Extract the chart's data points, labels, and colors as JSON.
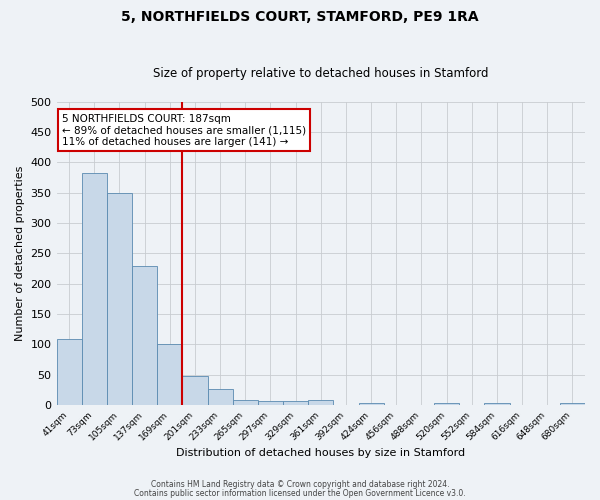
{
  "title": "5, NORTHFIELDS COURT, STAMFORD, PE9 1RA",
  "subtitle": "Size of property relative to detached houses in Stamford",
  "xlabel": "Distribution of detached houses by size in Stamford",
  "ylabel": "Number of detached properties",
  "bin_labels": [
    "41sqm",
    "73sqm",
    "105sqm",
    "137sqm",
    "169sqm",
    "201sqm",
    "233sqm",
    "265sqm",
    "297sqm",
    "329sqm",
    "361sqm",
    "392sqm",
    "424sqm",
    "456sqm",
    "488sqm",
    "520sqm",
    "552sqm",
    "584sqm",
    "616sqm",
    "648sqm",
    "680sqm"
  ],
  "bar_values": [
    108,
    382,
    350,
    229,
    100,
    47,
    27,
    8,
    6,
    6,
    9,
    0,
    3,
    0,
    0,
    4,
    0,
    3,
    0,
    0,
    3
  ],
  "bar_color": "#c8d8e8",
  "bar_edge_color": "#5a8ab0",
  "grid_color": "#c8ccd0",
  "bg_color": "#eef2f6",
  "vline_color": "#cc0000",
  "ylim": [
    0,
    500
  ],
  "annotation_title": "5 NORTHFIELDS COURT: 187sqm",
  "annotation_line1": "← 89% of detached houses are smaller (1,115)",
  "annotation_line2": "11% of detached houses are larger (141) →",
  "annotation_box_color": "#ffffff",
  "annotation_box_edge": "#cc0000",
  "footnote1": "Contains HM Land Registry data © Crown copyright and database right 2024.",
  "footnote2": "Contains public sector information licensed under the Open Government Licence v3.0."
}
